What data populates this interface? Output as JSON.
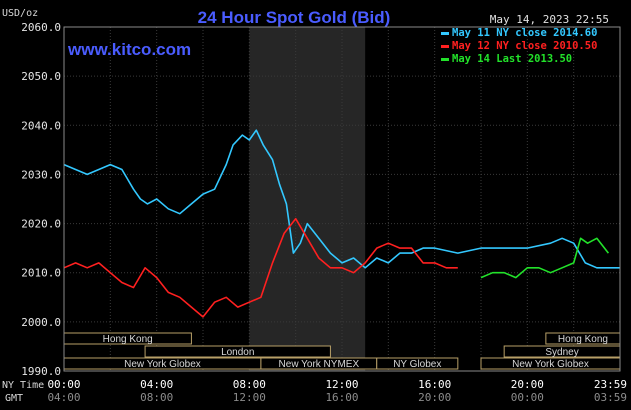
{
  "chart_data": {
    "type": "line",
    "title": "24 Hour Spot Gold (Bid)",
    "watermark": "www.kitco.com",
    "timestamp": "May 14, 2023 22:55",
    "ylabel": "USD/oz",
    "ylim": [
      1990,
      2060
    ],
    "yticks": [
      "2060.0",
      "2050.0",
      "2040.0",
      "2030.0",
      "2020.0",
      "2010.0",
      "2000.0",
      "1990.0"
    ],
    "x_row_labels": [
      "NY Time",
      "GMT"
    ],
    "xticks_ny": [
      "00:00",
      "04:00",
      "08:00",
      "12:00",
      "16:00",
      "20:00",
      "23:59"
    ],
    "xticks_gmt": [
      "04:00",
      "08:00",
      "12:00",
      "16:00",
      "20:00",
      "00:00",
      "03:59"
    ],
    "xlim_hours_ny": [
      0,
      24
    ],
    "shaded_region_hours_ny": [
      8,
      13
    ],
    "grid": true,
    "legend_position": "top-right",
    "markets": [
      {
        "name": "Hong Kong",
        "row": 1,
        "start": 0,
        "end": 5.5
      },
      {
        "name": "Hong Kong",
        "row": 1,
        "start": 20.8,
        "end": 24
      },
      {
        "name": "London",
        "row": 2,
        "start": 3.5,
        "end": 11.5
      },
      {
        "name": "Sydney",
        "row": 2,
        "start": 19,
        "end": 24
      },
      {
        "name": "New York Globex",
        "row": 3,
        "start": 0,
        "end": 8.5
      },
      {
        "name": "New York NYMEX",
        "row": 3,
        "start": 8.5,
        "end": 13.5
      },
      {
        "name": "NY Globex",
        "row": 3,
        "start": 13.5,
        "end": 17
      },
      {
        "name": "New York Globex",
        "row": 3,
        "start": 18,
        "end": 24
      }
    ],
    "series": [
      {
        "name": "May 11 NY close 2014.60",
        "color": "#33c8ff",
        "x": [
          0,
          0.5,
          1,
          1.5,
          2,
          2.5,
          3,
          3.3,
          3.6,
          4,
          4.5,
          5,
          5.5,
          6,
          6.5,
          7,
          7.3,
          7.7,
          8,
          8.3,
          8.6,
          9,
          9.3,
          9.6,
          9.9,
          10.2,
          10.5,
          11,
          11.5,
          12,
          12.5,
          13,
          13.5,
          14,
          14.5,
          15,
          15.5,
          16,
          17,
          18,
          19,
          20,
          21,
          21.5,
          22,
          22.5,
          23,
          23.5,
          24
        ],
        "y": [
          2032,
          2031,
          2030,
          2031,
          2032,
          2031,
          2027,
          2025,
          2024,
          2025,
          2023,
          2022,
          2024,
          2026,
          2027,
          2032,
          2036,
          2038,
          2037,
          2039,
          2036,
          2033,
          2028,
          2024,
          2014,
          2016,
          2020,
          2017,
          2014,
          2012,
          2013,
          2011,
          2013,
          2012,
          2014,
          2014,
          2015,
          2015,
          2014,
          2015,
          2015,
          2015,
          2016,
          2017,
          2016,
          2012,
          2011,
          2011,
          2011
        ]
      },
      {
        "name": "May 12 NY close 2010.50",
        "color": "#ff2020",
        "x": [
          0,
          0.5,
          1,
          1.5,
          2,
          2.5,
          3,
          3.5,
          4,
          4.5,
          5,
          5.5,
          6,
          6.5,
          7,
          7.5,
          8,
          8.5,
          9,
          9.5,
          10,
          10.5,
          11,
          11.5,
          12,
          12.5,
          13,
          13.5,
          14,
          14.5,
          15,
          15.5,
          16,
          16.5,
          17
        ],
        "y": [
          2011,
          2012,
          2011,
          2012,
          2010,
          2008,
          2007,
          2011,
          2009,
          2006,
          2005,
          2003,
          2001,
          2004,
          2005,
          2003,
          2004,
          2005,
          2012,
          2018,
          2021,
          2017,
          2013,
          2011,
          2011,
          2010,
          2012,
          2015,
          2016,
          2015,
          2015,
          2012,
          2012,
          2011,
          2011
        ]
      },
      {
        "name": "May 14 Last 2013.50",
        "color": "#22e22a",
        "x": [
          18,
          18.5,
          19,
          19.5,
          20,
          20.5,
          21,
          21.5,
          22,
          22.3,
          22.6,
          23,
          23.5
        ],
        "y": [
          2009,
          2010,
          2010,
          2009,
          2011,
          2011,
          2010,
          2011,
          2012,
          2017,
          2016,
          2017,
          2014
        ]
      }
    ]
  }
}
